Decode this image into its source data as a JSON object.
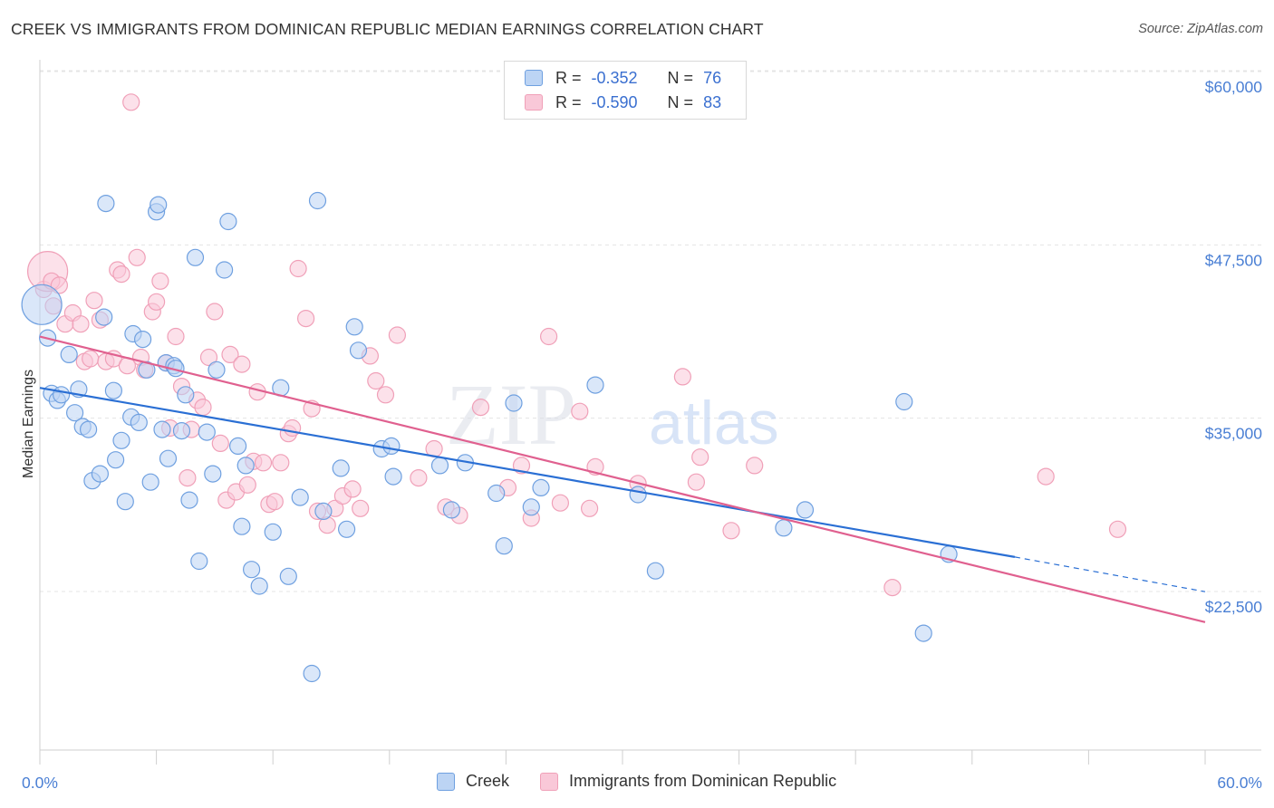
{
  "title": "CREEK VS IMMIGRANTS FROM DOMINICAN REPUBLIC MEDIAN EARNINGS CORRELATION CHART",
  "source": "Source: ZipAtlas.com",
  "watermark": {
    "zip": "ZIP",
    "atlas": "atlas"
  },
  "legend": {
    "r_label": "R =",
    "n_label": "N =",
    "rows": [
      {
        "r": "-0.352",
        "n": "76"
      },
      {
        "r": "-0.590",
        "n": "83"
      }
    ]
  },
  "chart_data": {
    "type": "scatter",
    "title": "CREEK VS IMMIGRANTS FROM DOMINICAN REPUBLIC MEDIAN EARNINGS CORRELATION CHART",
    "xlabel": "",
    "ylabel": "Median Earnings",
    "xlim": [
      0,
      60
    ],
    "ylim": [
      13500,
      61500
    ],
    "x_tick_labels": [
      "0.0%",
      "60.0%"
    ],
    "y_ticks": [
      22500,
      35000,
      47500,
      60000
    ],
    "y_tick_labels": [
      "$22,500",
      "$35,000",
      "$47,500",
      "$60,000"
    ],
    "grid": true,
    "legend_position": "top-center",
    "colors": {
      "creek": "#6fa0e0",
      "dominican": "#f0a0b8",
      "creek_line": "#2a6fd4",
      "dominican_line": "#e0608f"
    },
    "series": [
      {
        "name": "Creek",
        "r": -0.352,
        "n": 76,
        "trend": {
          "x": [
            0,
            50.2,
            60
          ],
          "y": [
            38300,
            26100,
            23600
          ],
          "solid_until": 50.2
        },
        "points": [
          [
            0.1,
            44300
          ],
          [
            0.4,
            41900
          ],
          [
            0.6,
            37900
          ],
          [
            0.9,
            37400
          ],
          [
            1.1,
            37800
          ],
          [
            1.5,
            40700
          ],
          [
            1.8,
            36500
          ],
          [
            2.0,
            38200
          ],
          [
            2.2,
            35500
          ],
          [
            2.5,
            35300
          ],
          [
            2.7,
            31600
          ],
          [
            3.1,
            32100
          ],
          [
            3.3,
            43400
          ],
          [
            3.4,
            51600
          ],
          [
            3.8,
            38100
          ],
          [
            3.9,
            33100
          ],
          [
            4.2,
            34500
          ],
          [
            4.4,
            30100
          ],
          [
            4.7,
            36200
          ],
          [
            4.8,
            42200
          ],
          [
            5.1,
            35800
          ],
          [
            5.3,
            41800
          ],
          [
            5.5,
            39600
          ],
          [
            5.7,
            31500
          ],
          [
            6.0,
            51000
          ],
          [
            6.1,
            51500
          ],
          [
            6.3,
            35300
          ],
          [
            6.5,
            40100
          ],
          [
            6.6,
            33200
          ],
          [
            6.9,
            39900
          ],
          [
            7.0,
            39700
          ],
          [
            7.3,
            35200
          ],
          [
            7.5,
            37800
          ],
          [
            7.7,
            30200
          ],
          [
            8.0,
            47700
          ],
          [
            8.2,
            25800
          ],
          [
            8.6,
            35100
          ],
          [
            8.9,
            32100
          ],
          [
            9.1,
            39600
          ],
          [
            9.5,
            46800
          ],
          [
            9.7,
            50300
          ],
          [
            10.2,
            34100
          ],
          [
            10.4,
            28300
          ],
          [
            10.6,
            32700
          ],
          [
            10.9,
            25200
          ],
          [
            11.3,
            24000
          ],
          [
            12.0,
            27900
          ],
          [
            12.4,
            38300
          ],
          [
            12.8,
            24700
          ],
          [
            13.4,
            30400
          ],
          [
            14.0,
            17700
          ],
          [
            14.3,
            51800
          ],
          [
            14.6,
            29400
          ],
          [
            15.5,
            32500
          ],
          [
            15.8,
            28100
          ],
          [
            16.2,
            42700
          ],
          [
            16.4,
            41000
          ],
          [
            17.6,
            33900
          ],
          [
            18.1,
            34100
          ],
          [
            18.2,
            31900
          ],
          [
            20.6,
            32700
          ],
          [
            21.2,
            29500
          ],
          [
            21.9,
            32900
          ],
          [
            23.5,
            30700
          ],
          [
            23.9,
            26900
          ],
          [
            24.4,
            37200
          ],
          [
            25.3,
            29700
          ],
          [
            25.8,
            31100
          ],
          [
            28.6,
            38500
          ],
          [
            30.8,
            30600
          ],
          [
            31.7,
            25100
          ],
          [
            38.3,
            28200
          ],
          [
            39.4,
            29500
          ],
          [
            44.5,
            37300
          ],
          [
            45.5,
            20600
          ],
          [
            46.8,
            26300
          ]
        ]
      },
      {
        "name": "Immigrants from Dominican Republic",
        "r": -0.59,
        "n": 83,
        "trend": {
          "x": [
            0,
            60
          ],
          "y": [
            42000,
            21400
          ]
        },
        "points": [
          [
            0.2,
            45400
          ],
          [
            0.4,
            46700
          ],
          [
            0.6,
            46000
          ],
          [
            0.7,
            44200
          ],
          [
            1.0,
            45700
          ],
          [
            1.3,
            42900
          ],
          [
            1.7,
            43700
          ],
          [
            2.1,
            42900
          ],
          [
            2.3,
            40200
          ],
          [
            2.6,
            40400
          ],
          [
            2.8,
            44600
          ],
          [
            3.1,
            43200
          ],
          [
            3.4,
            40200
          ],
          [
            3.8,
            40400
          ],
          [
            4.0,
            46800
          ],
          [
            4.2,
            46500
          ],
          [
            4.5,
            39900
          ],
          [
            4.7,
            58900
          ],
          [
            5.0,
            47700
          ],
          [
            5.2,
            40500
          ],
          [
            5.4,
            39600
          ],
          [
            5.8,
            43800
          ],
          [
            6.0,
            44500
          ],
          [
            6.2,
            46000
          ],
          [
            6.5,
            40100
          ],
          [
            6.7,
            35400
          ],
          [
            7.0,
            42000
          ],
          [
            7.3,
            38400
          ],
          [
            7.6,
            31800
          ],
          [
            7.8,
            35300
          ],
          [
            8.1,
            37400
          ],
          [
            8.4,
            36900
          ],
          [
            8.7,
            40500
          ],
          [
            9.0,
            43800
          ],
          [
            9.3,
            34300
          ],
          [
            9.6,
            30200
          ],
          [
            9.8,
            40700
          ],
          [
            10.1,
            30800
          ],
          [
            10.4,
            40000
          ],
          [
            10.7,
            31300
          ],
          [
            11.0,
            33000
          ],
          [
            11.2,
            38000
          ],
          [
            11.5,
            32900
          ],
          [
            11.8,
            29900
          ],
          [
            12.1,
            30100
          ],
          [
            12.4,
            32900
          ],
          [
            12.8,
            35000
          ],
          [
            13.0,
            35400
          ],
          [
            13.3,
            46900
          ],
          [
            13.7,
            43300
          ],
          [
            14.0,
            36800
          ],
          [
            14.3,
            29400
          ],
          [
            14.8,
            28400
          ],
          [
            15.2,
            29600
          ],
          [
            15.6,
            30500
          ],
          [
            16.1,
            31000
          ],
          [
            16.5,
            29600
          ],
          [
            17.0,
            40600
          ],
          [
            17.3,
            38800
          ],
          [
            17.8,
            37800
          ],
          [
            18.4,
            42100
          ],
          [
            19.5,
            31800
          ],
          [
            20.3,
            33900
          ],
          [
            20.9,
            29700
          ],
          [
            21.6,
            29100
          ],
          [
            22.7,
            36900
          ],
          [
            24.1,
            31100
          ],
          [
            24.8,
            32700
          ],
          [
            25.3,
            28900
          ],
          [
            26.2,
            42000
          ],
          [
            26.8,
            30000
          ],
          [
            27.8,
            36600
          ],
          [
            28.3,
            29600
          ],
          [
            28.6,
            32600
          ],
          [
            30.8,
            31400
          ],
          [
            33.1,
            39100
          ],
          [
            33.8,
            31500
          ],
          [
            34.0,
            33300
          ],
          [
            35.6,
            28000
          ],
          [
            36.8,
            32700
          ],
          [
            43.9,
            23900
          ],
          [
            51.8,
            31900
          ],
          [
            55.5,
            28100
          ]
        ]
      }
    ]
  }
}
